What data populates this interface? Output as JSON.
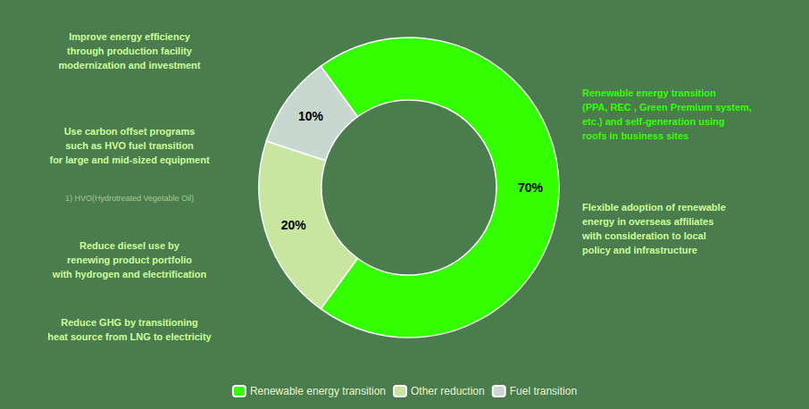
{
  "chart_data": {
    "type": "pie",
    "categories": [
      "Renewable energy transition",
      "Other reduction",
      "Fuel transition"
    ],
    "values": [
      70,
      20,
      10
    ],
    "value_labels": [
      "70%",
      "20%",
      "10%"
    ],
    "colors": [
      "#33ff00",
      "#c8e6a0",
      "#c8d8d0"
    ],
    "data_labels": true,
    "legend": "bottom",
    "annotations": [
      {
        "text": "Improve energy efficiency\nthrough production facility\nmodernization and investment",
        "color": "#ccff99"
      },
      {
        "text": "Use carbon offset programs\nsuch as HVO fuel transition\nfor large and mid-sized equipment",
        "color": "#ccff99"
      },
      {
        "text": "1) HVO(Hydrotreated Vegetable Oil)",
        "color": "#aac888"
      },
      {
        "text": "Reduce diesel use by\nrenewing product portfolio\nwith hydrogen and electrification",
        "color": "#ccff99"
      },
      {
        "text": "Reduce GHG by transitioning\nheat source from LNG to electricity",
        "color": "#ccff99"
      },
      {
        "text": "Renewable energy transition\n(PPA, REC , Green Premium system,\netc.) and self-generation using\nroofs in business sites",
        "color": "#33ff00"
      },
      {
        "text": "Flexible adoption of renewable\nenergy in overseas affiliates\nwith consideration to local\npolicy and infrastructure",
        "color": "#ccff99"
      }
    ]
  }
}
